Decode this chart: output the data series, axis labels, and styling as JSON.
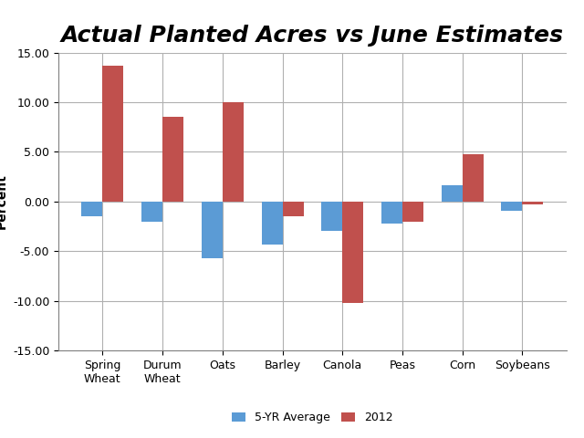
{
  "title": "Actual Planted Acres vs June Estimates",
  "categories": [
    "Spring\nWheat",
    "Durum\nWheat",
    "Oats",
    "Barley",
    "Canola",
    "Peas",
    "Corn",
    "Soybeans"
  ],
  "five_yr_avg": [
    -1.5,
    -2.0,
    -5.7,
    -4.3,
    -3.0,
    -2.2,
    1.6,
    -0.9
  ],
  "yr2012": [
    13.7,
    8.5,
    10.0,
    -1.5,
    -10.2,
    -2.0,
    4.8,
    -0.3
  ],
  "color_5yr": "#5B9BD5",
  "color_2012": "#C0504D",
  "ylabel": "Percent",
  "ylim": [
    -15.0,
    15.0
  ],
  "yticks": [
    -15.0,
    -10.0,
    -5.0,
    0.0,
    5.0,
    10.0,
    15.0
  ],
  "legend_5yr": "5-YR Average",
  "legend_2012": "2012",
  "title_fontsize": 18,
  "title_fontstyle": "italic",
  "title_fontweight": "bold",
  "bar_width": 0.35,
  "grid": true,
  "background_color": "#ffffff"
}
